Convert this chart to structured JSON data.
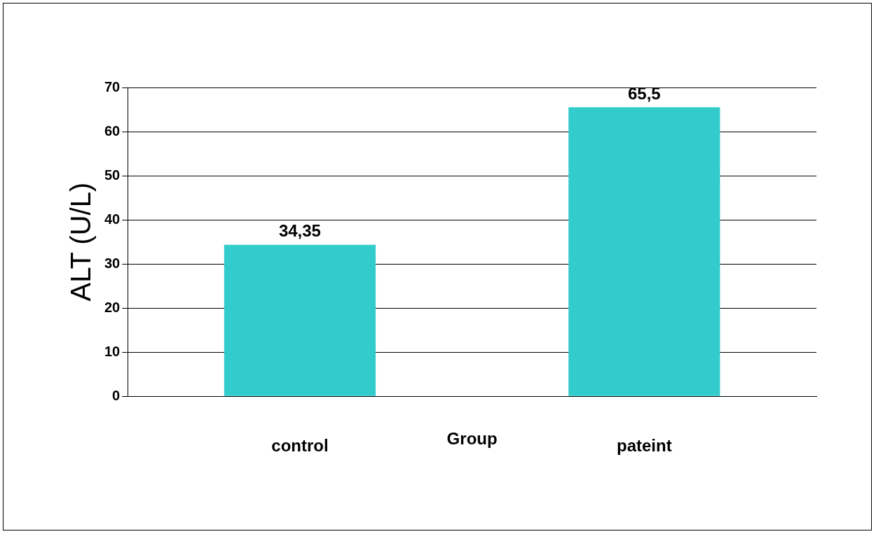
{
  "chart_data": {
    "type": "bar",
    "xlabel": "Group",
    "ylabel": "ALT (U/L)",
    "categories": [
      "control",
      "pateint"
    ],
    "values": [
      34.35,
      65.5
    ],
    "value_labels": [
      "34,35",
      "65,5"
    ],
    "color": "#33cccc",
    "ylim": [
      0,
      70
    ],
    "yticks": [
      0,
      10,
      20,
      30,
      40,
      50,
      60,
      70
    ],
    "grid": "y",
    "legend": false
  }
}
